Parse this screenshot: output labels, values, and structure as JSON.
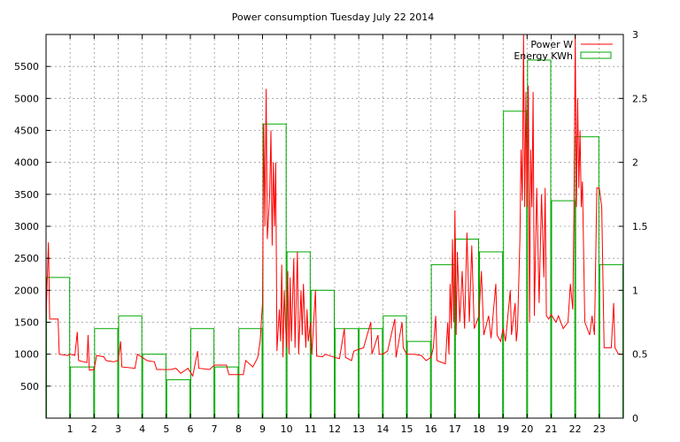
{
  "chart_data": {
    "type": "line",
    "title": "Power consumption Tuesday July 22 2014",
    "xlabel": "",
    "ylabel": "",
    "y2label": "",
    "x_ticks": [
      "1",
      "2",
      "3",
      "4",
      "5",
      "6",
      "7",
      "8",
      "9",
      "10",
      "11",
      "12",
      "13",
      "14",
      "15",
      "16",
      "17",
      "18",
      "19",
      "20",
      "21",
      "22",
      "23"
    ],
    "xlim": [
      0,
      24
    ],
    "ylim": [
      0,
      6000
    ],
    "y_ticks": [
      "500",
      "1000",
      "1500",
      "2000",
      "2500",
      "3000",
      "3500",
      "4000",
      "4500",
      "5000",
      "5500"
    ],
    "y2lim": [
      0,
      3
    ],
    "y2_ticks": [
      "0",
      "0.5",
      "1",
      "1.5",
      "2",
      "2.5",
      "3"
    ],
    "grid": true,
    "legend_position": "top-right",
    "series": [
      {
        "name": "Power W",
        "axis": "left",
        "color": "#ff0000",
        "points": [
          [
            0.0,
            1550
          ],
          [
            0.1,
            2750
          ],
          [
            0.15,
            1550
          ],
          [
            0.5,
            1550
          ],
          [
            0.55,
            1000
          ],
          [
            0.9,
            980
          ],
          [
            1.0,
            1000
          ],
          [
            1.2,
            980
          ],
          [
            1.3,
            1350
          ],
          [
            1.35,
            900
          ],
          [
            1.7,
            870
          ],
          [
            1.75,
            1300
          ],
          [
            1.8,
            750
          ],
          [
            2.0,
            760
          ],
          [
            2.1,
            980
          ],
          [
            2.4,
            960
          ],
          [
            2.5,
            900
          ],
          [
            2.8,
            880
          ],
          [
            3.0,
            900
          ],
          [
            3.1,
            1200
          ],
          [
            3.15,
            800
          ],
          [
            3.7,
            780
          ],
          [
            3.8,
            1000
          ],
          [
            4.2,
            900
          ],
          [
            4.5,
            880
          ],
          [
            4.6,
            760
          ],
          [
            5.2,
            760
          ],
          [
            5.4,
            780
          ],
          [
            5.6,
            700
          ],
          [
            5.9,
            780
          ],
          [
            6.1,
            660
          ],
          [
            6.3,
            1050
          ],
          [
            6.35,
            780
          ],
          [
            6.8,
            760
          ],
          [
            7.0,
            830
          ],
          [
            7.5,
            830
          ],
          [
            7.6,
            680
          ],
          [
            8.2,
            680
          ],
          [
            8.3,
            900
          ],
          [
            8.6,
            800
          ],
          [
            8.8,
            950
          ],
          [
            8.9,
            1200
          ],
          [
            9.0,
            1800
          ],
          [
            9.05,
            4600
          ],
          [
            9.1,
            3000
          ],
          [
            9.15,
            5150
          ],
          [
            9.2,
            2800
          ],
          [
            9.3,
            3500
          ],
          [
            9.35,
            4500
          ],
          [
            9.4,
            2700
          ],
          [
            9.45,
            4000
          ],
          [
            9.5,
            3000
          ],
          [
            9.55,
            4000
          ],
          [
            9.6,
            1050
          ],
          [
            9.7,
            1700
          ],
          [
            9.75,
            1200
          ],
          [
            9.8,
            2400
          ],
          [
            9.85,
            950
          ],
          [
            9.9,
            2000
          ],
          [
            9.95,
            1500
          ],
          [
            10.0,
            1100
          ],
          [
            10.05,
            2300
          ],
          [
            10.1,
            1000
          ],
          [
            10.15,
            2200
          ],
          [
            10.2,
            1200
          ],
          [
            10.3,
            2500
          ],
          [
            10.35,
            1100
          ],
          [
            10.45,
            2600
          ],
          [
            10.5,
            1000
          ],
          [
            10.6,
            2000
          ],
          [
            10.65,
            1300
          ],
          [
            10.7,
            2100
          ],
          [
            10.8,
            1100
          ],
          [
            10.85,
            1700
          ],
          [
            10.9,
            1200
          ],
          [
            11.0,
            1500
          ],
          [
            11.05,
            1000
          ],
          [
            11.2,
            2000
          ],
          [
            11.25,
            970
          ],
          [
            11.5,
            960
          ],
          [
            11.6,
            1000
          ],
          [
            12.0,
            950
          ],
          [
            12.2,
            930
          ],
          [
            12.4,
            1400
          ],
          [
            12.45,
            950
          ],
          [
            12.7,
            900
          ],
          [
            12.8,
            1050
          ],
          [
            13.2,
            1100
          ],
          [
            13.5,
            1500
          ],
          [
            13.55,
            1000
          ],
          [
            13.8,
            1300
          ],
          [
            13.85,
            1000
          ],
          [
            14.0,
            1000
          ],
          [
            14.2,
            1050
          ],
          [
            14.5,
            1550
          ],
          [
            14.55,
            950
          ],
          [
            14.8,
            1500
          ],
          [
            14.85,
            1100
          ],
          [
            15.0,
            1000
          ],
          [
            15.3,
            1000
          ],
          [
            15.6,
            980
          ],
          [
            15.8,
            900
          ],
          [
            16.0,
            950
          ],
          [
            16.1,
            1100
          ],
          [
            16.2,
            1600
          ],
          [
            16.25,
            900
          ],
          [
            16.6,
            850
          ],
          [
            16.7,
            1500
          ],
          [
            16.75,
            1000
          ],
          [
            16.8,
            2100
          ],
          [
            16.85,
            1400
          ],
          [
            16.9,
            2800
          ],
          [
            16.95,
            1500
          ],
          [
            17.0,
            3250
          ],
          [
            17.05,
            1300
          ],
          [
            17.1,
            2600
          ],
          [
            17.2,
            1500
          ],
          [
            17.3,
            2300
          ],
          [
            17.4,
            1400
          ],
          [
            17.5,
            2900
          ],
          [
            17.6,
            1500
          ],
          [
            17.7,
            2700
          ],
          [
            17.8,
            1400
          ],
          [
            18.0,
            1600
          ],
          [
            18.1,
            2300
          ],
          [
            18.2,
            1300
          ],
          [
            18.4,
            1600
          ],
          [
            18.5,
            1250
          ],
          [
            18.7,
            2100
          ],
          [
            18.75,
            1300
          ],
          [
            18.9,
            1200
          ],
          [
            19.0,
            1400
          ],
          [
            19.1,
            1200
          ],
          [
            19.3,
            2000
          ],
          [
            19.35,
            1300
          ],
          [
            19.5,
            1800
          ],
          [
            19.55,
            1200
          ],
          [
            19.6,
            1400
          ],
          [
            19.7,
            2800
          ],
          [
            19.75,
            4200
          ],
          [
            19.8,
            3400
          ],
          [
            19.85,
            6000
          ],
          [
            19.9,
            3300
          ],
          [
            19.95,
            5100
          ],
          [
            20.0,
            3300
          ],
          [
            20.05,
            5200
          ],
          [
            20.1,
            1500
          ],
          [
            20.15,
            4200
          ],
          [
            20.2,
            3300
          ],
          [
            20.25,
            5100
          ],
          [
            20.3,
            1600
          ],
          [
            20.4,
            3600
          ],
          [
            20.5,
            1800
          ],
          [
            20.6,
            3500
          ],
          [
            20.7,
            2200
          ],
          [
            20.75,
            3600
          ],
          [
            20.8,
            1600
          ],
          [
            20.9,
            1550
          ],
          [
            21.0,
            1620
          ],
          [
            21.2,
            1500
          ],
          [
            21.3,
            1600
          ],
          [
            21.5,
            1400
          ],
          [
            21.7,
            1500
          ],
          [
            21.8,
            2100
          ],
          [
            21.9,
            1700
          ],
          [
            21.95,
            3300
          ],
          [
            22.0,
            6000
          ],
          [
            22.05,
            3300
          ],
          [
            22.1,
            5000
          ],
          [
            22.15,
            3600
          ],
          [
            22.2,
            4500
          ],
          [
            22.25,
            3300
          ],
          [
            22.3,
            3700
          ],
          [
            22.4,
            1500
          ],
          [
            22.5,
            1400
          ],
          [
            22.6,
            1300
          ],
          [
            22.7,
            1600
          ],
          [
            22.8,
            1300
          ],
          [
            22.9,
            3600
          ],
          [
            23.0,
            3600
          ],
          [
            23.1,
            3300
          ],
          [
            23.2,
            1100
          ],
          [
            23.5,
            1100
          ],
          [
            23.6,
            1800
          ],
          [
            23.65,
            1100
          ],
          [
            23.8,
            1000
          ],
          [
            24.0,
            1000
          ]
        ]
      },
      {
        "name": "Energy KWh",
        "axis": "right",
        "color": "#00aa00",
        "style": "steps",
        "hours": [
          0,
          1,
          2,
          3,
          4,
          5,
          6,
          7,
          8,
          9,
          10,
          11,
          12,
          13,
          14,
          15,
          16,
          17,
          18,
          19,
          20,
          21,
          22,
          23
        ],
        "values": [
          1.1,
          0.4,
          0.7,
          0.8,
          0.5,
          0.3,
          0.7,
          0.4,
          0.7,
          2.3,
          1.3,
          1.0,
          0.7,
          0.7,
          0.8,
          0.6,
          1.2,
          1.4,
          1.3,
          2.4,
          2.8,
          1.7,
          2.2,
          1.2
        ]
      }
    ]
  }
}
